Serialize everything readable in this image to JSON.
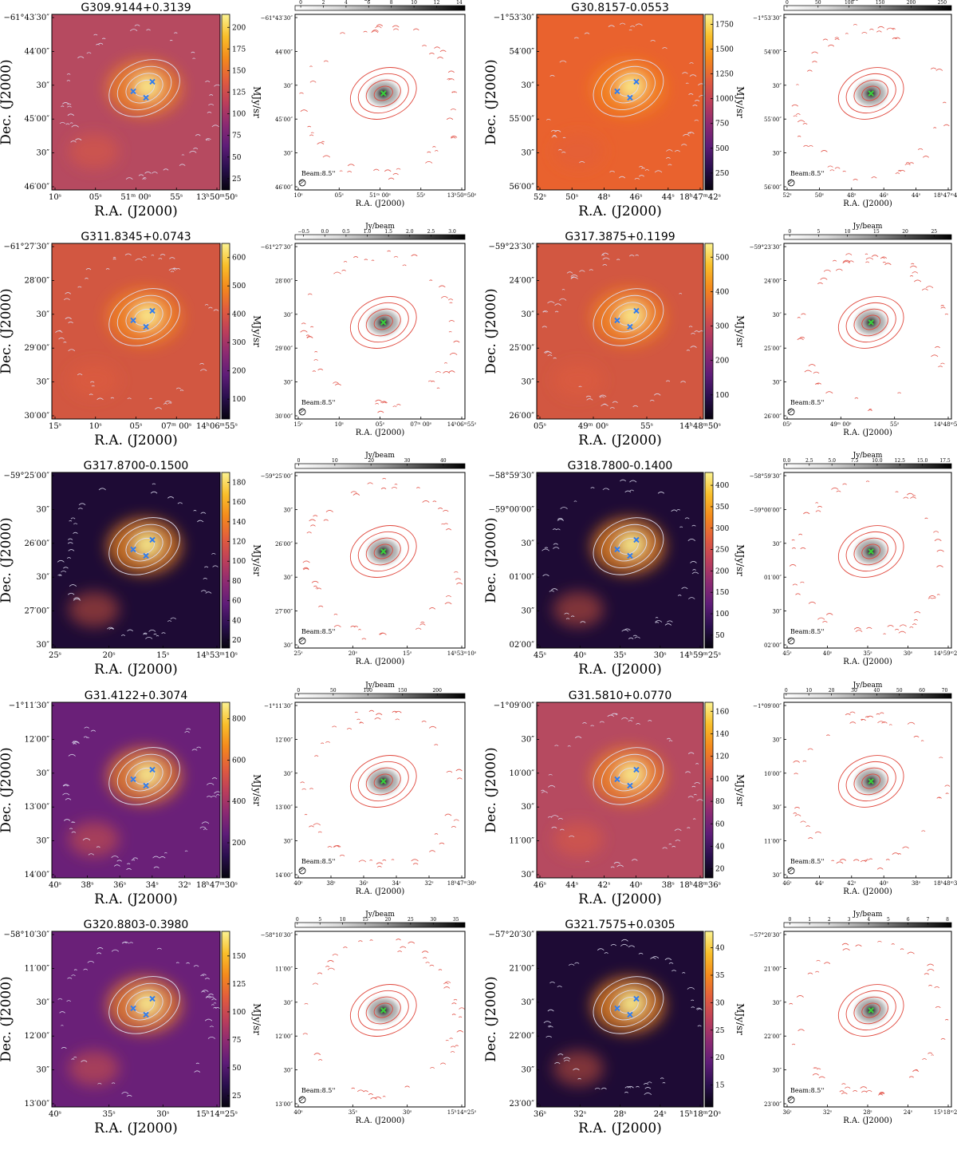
{
  "figure": {
    "ra_label": "R.A. (J2000)",
    "dec_label": "Dec. (J2000)",
    "ir_unit": "MJy/sr",
    "cbar_label": "Jy/beam",
    "beam_label": "Beam:8.5''"
  },
  "colors": {
    "ir_colormap": [
      "#07040f",
      "#2a0f4e",
      "#5e1c78",
      "#8d2a72",
      "#bd3f5a",
      "#e25d3d",
      "#f48a1c",
      "#f9bf2a",
      "#fbf291"
    ],
    "gray_colormap": [
      "#ffffff",
      "#d9d9d9",
      "#9a9a9a",
      "#4a4a4a",
      "#000000"
    ],
    "contour_ir": "#dcdcf0",
    "contour_gray": "#e0473c",
    "cross_ir": "#2f7df0",
    "cross_gray": "#38d23a"
  },
  "sources": [
    {
      "name": "G309.9144+0.3139",
      "ir_style": "bright",
      "dec_ticks": [
        "−61°43′30″",
        "44′00″",
        "30″",
        "45′00″",
        "30″",
        "46′00″"
      ],
      "ra_ticks": [
        "10ˢ",
        "05ˢ",
        "51ᵐ 00ˢ",
        "55ˢ",
        "13ʰ50ᵐ50ˢ"
      ],
      "ir_cbar_ticks": [
        "200",
        "175",
        "150",
        "125",
        "100",
        "75",
        "50",
        "25"
      ],
      "ir_cbar_values": [
        200,
        175,
        150,
        125,
        100,
        75,
        50,
        25
      ],
      "ir_cbar_range": [
        12,
        215
      ],
      "gray_cbar_ticks": [
        "0",
        "2",
        "4",
        "6",
        "8",
        "10",
        "12",
        "14"
      ],
      "gray_cbar_values": [
        0,
        2,
        4,
        6,
        8,
        10,
        12,
        14
      ],
      "gray_cbar_range": [
        -0.5,
        14.5
      ],
      "gray_dec_ticks": [
        "−61°43′30″",
        "44′00″",
        "30″",
        "45′00″",
        "30″",
        "46′00″"
      ],
      "gray_ra_ticks": [
        "10ˢ",
        "05ˢ",
        "51ᵐ 00ˢ",
        "55ˢ",
        "13ʰ50ᵐ50ˢ"
      ]
    },
    {
      "name": "G30.8157-0.0553",
      "ir_style": "saturated",
      "dec_ticks": [
        "−1°53′30″",
        "54′00″",
        "30″",
        "55′00″",
        "30″",
        "56′00″"
      ],
      "ra_ticks": [
        "52ˢ",
        "50ˢ",
        "48ˢ",
        "46ˢ",
        "44ˢ",
        "18ʰ47ᵐ42ˢ"
      ],
      "ir_cbar_ticks": [
        "1750",
        "1500",
        "1250",
        "1000",
        "750",
        "500",
        "250"
      ],
      "ir_cbar_values": [
        1750,
        1500,
        1250,
        1000,
        750,
        500,
        250
      ],
      "ir_cbar_range": [
        80,
        1850
      ],
      "gray_cbar_ticks": [
        "0",
        "50",
        "100",
        "150",
        "200",
        "250"
      ],
      "gray_cbar_values": [
        0,
        50,
        100,
        150,
        200,
        250
      ],
      "gray_cbar_range": [
        -5,
        265
      ],
      "gray_dec_ticks": [
        "−1°53′30″",
        "54′00″",
        "30″",
        "55′00″",
        "30″",
        "56′00″"
      ],
      "gray_ra_ticks": [
        "52ˢ",
        "50ˢ",
        "48ˢ",
        "46ˢ",
        "44ˢ",
        "18ʰ47ᵐ42ˢ"
      ]
    },
    {
      "name": "G311.8345+0.0743",
      "ir_style": "warm",
      "dec_ticks": [
        "−61°27′30″",
        "28′00″",
        "30″",
        "29′00″",
        "30″",
        "30′00″"
      ],
      "ra_ticks": [
        "15ˢ",
        "10ˢ",
        "05ˢ",
        "07ᵐ 00ˢ",
        "14ʰ06ᵐ55ˢ"
      ],
      "ir_cbar_ticks": [
        "600",
        "500",
        "400",
        "300",
        "200",
        "100"
      ],
      "ir_cbar_values": [
        600,
        500,
        400,
        300,
        200,
        100
      ],
      "ir_cbar_range": [
        30,
        650
      ],
      "gray_cbar_ticks": [
        "−0.5",
        "0.0",
        "0.5",
        "1.0",
        "1.5",
        "2.0",
        "2.5",
        "3.0"
      ],
      "gray_cbar_values": [
        -0.5,
        0.0,
        0.5,
        1.0,
        1.5,
        2.0,
        2.5,
        3.0
      ],
      "gray_cbar_range": [
        -0.7,
        3.3
      ],
      "gray_dec_ticks": [
        "−61°27′30″",
        "28′00″",
        "30″",
        "29′00″",
        "30″",
        "30′00″"
      ],
      "gray_ra_ticks": [
        "15ˢ",
        "10ˢ",
        "05ˢ",
        "07ᵐ 00ˢ",
        "14ʰ06ᵐ55ˢ"
      ]
    },
    {
      "name": "G317.3875+0.1199",
      "ir_style": "warm",
      "dec_ticks": [
        "−59°23′30″",
        "24′00″",
        "30″",
        "25′00″",
        "30″",
        "26′00″"
      ],
      "ra_ticks": [
        "05ˢ",
        "49ᵐ 00ˢ",
        "55ˢ",
        "14ʰ48ᵐ50ˢ"
      ],
      "ir_cbar_ticks": [
        "500",
        "400",
        "300",
        "200",
        "100"
      ],
      "ir_cbar_values": [
        500,
        400,
        300,
        200,
        100
      ],
      "ir_cbar_range": [
        30,
        540
      ],
      "gray_cbar_ticks": [
        "0",
        "5",
        "10",
        "15",
        "20",
        "25"
      ],
      "gray_cbar_values": [
        0,
        5,
        10,
        15,
        20,
        25
      ],
      "gray_cbar_range": [
        -1,
        28
      ],
      "gray_dec_ticks": [
        "−59°23′30″",
        "24′00″",
        "30″",
        "25′00″",
        "30″",
        "26′00″"
      ],
      "gray_ra_ticks": [
        "05ˢ",
        "49ᵐ 00ˢ",
        "55ˢ",
        "14ʰ48ᵐ50ˢ"
      ]
    },
    {
      "name": "G317.8700-0.1500",
      "ir_style": "dark",
      "dec_ticks": [
        "−59°25′00″",
        "30″",
        "26′00″",
        "30″",
        "27′00″",
        "30″"
      ],
      "ra_ticks": [
        "25ˢ",
        "20ˢ",
        "15ˢ",
        "14ʰ53ᵐ10ˢ"
      ],
      "ir_cbar_ticks": [
        "180",
        "160",
        "140",
        "120",
        "100",
        "80",
        "60",
        "40",
        "20"
      ],
      "ir_cbar_values": [
        180,
        160,
        140,
        120,
        100,
        80,
        60,
        40,
        20
      ],
      "ir_cbar_range": [
        12,
        190
      ],
      "gray_cbar_ticks": [
        "0",
        "10",
        "20",
        "30",
        "40"
      ],
      "gray_cbar_values": [
        0,
        10,
        20,
        30,
        40
      ],
      "gray_cbar_range": [
        -1,
        46
      ],
      "gray_dec_ticks": [
        "−59°25′00″",
        "30″",
        "26′00″",
        "30″",
        "27′00″",
        "30″"
      ],
      "gray_ra_ticks": [
        "25ˢ",
        "20ˢ",
        "15ˢ",
        "14ʰ53ᵐ10ˢ"
      ]
    },
    {
      "name": "G318.7800-0.1400",
      "ir_style": "dark",
      "dec_ticks": [
        "−58°59′30″",
        "−59°00′00″",
        "30″",
        "01′00″",
        "30″",
        "02′00″"
      ],
      "ra_ticks": [
        "45ˢ",
        "40ˢ",
        "35ˢ",
        "30ˢ",
        "14ʰ59ᵐ25ˢ"
      ],
      "ir_cbar_ticks": [
        "400",
        "350",
        "300",
        "250",
        "200",
        "150",
        "100",
        "50"
      ],
      "ir_cbar_values": [
        400,
        350,
        300,
        250,
        200,
        150,
        100,
        50
      ],
      "ir_cbar_range": [
        20,
        430
      ],
      "gray_cbar_ticks": [
        "0.0",
        "2.5",
        "5.0",
        "7.5",
        "10.0",
        "12.5",
        "15.0",
        "17.5"
      ],
      "gray_cbar_values": [
        0.0,
        2.5,
        5.0,
        7.5,
        10.0,
        12.5,
        15.0,
        17.5
      ],
      "gray_cbar_range": [
        -0.3,
        18.2
      ],
      "gray_dec_ticks": [
        "−58°59′30″",
        "−59°00′00″",
        "30″",
        "01′00″",
        "30″",
        "02′00″"
      ],
      "gray_ra_ticks": [
        "45ˢ",
        "40ˢ",
        "35ˢ",
        "30ˢ",
        "14ʰ59ᵐ25ˢ"
      ]
    },
    {
      "name": "G31.4122+0.3074",
      "ir_style": "mid",
      "dec_ticks": [
        "−1°11′30″",
        "12′00″",
        "30″",
        "13′00″",
        "30″",
        "14′00″"
      ],
      "ra_ticks": [
        "40ˢ",
        "38ˢ",
        "36ˢ",
        "34ˢ",
        "32ˢ",
        "18ʰ47ᵐ30ˢ"
      ],
      "ir_cbar_ticks": [
        "800",
        "600",
        "400",
        "200"
      ],
      "ir_cbar_values": [
        800,
        600,
        400,
        200
      ],
      "ir_cbar_range": [
        30,
        880
      ],
      "gray_cbar_ticks": [
        "0",
        "50",
        "100",
        "150",
        "200"
      ],
      "gray_cbar_values": [
        0,
        50,
        100,
        150,
        200
      ],
      "gray_cbar_range": [
        -5,
        240
      ],
      "gray_dec_ticks": [
        "−1°11′30″",
        "12′00″",
        "30″",
        "13′00″",
        "30″",
        "14′00″"
      ],
      "gray_ra_ticks": [
        "40ˢ",
        "38ˢ",
        "36ˢ",
        "34ˢ",
        "32ˢ",
        "18ʰ47ᵐ30ˢ"
      ]
    },
    {
      "name": "G31.5810+0.0770",
      "ir_style": "bright",
      "dec_ticks": [
        "−1°09′00″",
        "30″",
        "10′00″",
        "30″",
        "11′00″",
        "30″"
      ],
      "ra_ticks": [
        "46ˢ",
        "44ˢ",
        "42ˢ",
        "40ˢ",
        "38ˢ",
        "18ʰ48ᵐ36ˢ"
      ],
      "ir_cbar_ticks": [
        "160",
        "140",
        "120",
        "100",
        "80",
        "60",
        "40",
        "20"
      ],
      "ir_cbar_values": [
        160,
        140,
        120,
        100,
        80,
        60,
        40,
        20
      ],
      "ir_cbar_range": [
        12,
        168
      ],
      "gray_cbar_ticks": [
        "0",
        "10",
        "20",
        "30",
        "40",
        "50",
        "60",
        "70"
      ],
      "gray_cbar_values": [
        0,
        10,
        20,
        30,
        40,
        50,
        60,
        70
      ],
      "gray_cbar_range": [
        -1,
        73
      ],
      "gray_dec_ticks": [
        "−1°09′00″",
        "30″",
        "10′00″",
        "30″",
        "11′00″",
        "30″"
      ],
      "gray_ra_ticks": [
        "46ˢ",
        "44ˢ",
        "42ˢ",
        "40ˢ",
        "38ˢ",
        "18ʰ48ᵐ36ˢ"
      ]
    },
    {
      "name": "G320.8803-0.3980",
      "ir_style": "mid",
      "dec_ticks": [
        "−58°10′30″",
        "11′00″",
        "30″",
        "12′00″",
        "30″",
        "13′00″"
      ],
      "ra_ticks": [
        "40ˢ",
        "35ˢ",
        "30ˢ",
        "15ʰ14ᵐ25ˢ"
      ],
      "ir_cbar_ticks": [
        "150",
        "125",
        "100",
        "75",
        "50",
        "25"
      ],
      "ir_cbar_values": [
        150,
        125,
        100,
        75,
        50,
        25
      ],
      "ir_cbar_range": [
        15,
        172
      ],
      "gray_cbar_ticks": [
        "0",
        "5",
        "10",
        "15",
        "20",
        "25",
        "30",
        "35"
      ],
      "gray_cbar_values": [
        0,
        5,
        10,
        15,
        20,
        25,
        30,
        35
      ],
      "gray_cbar_range": [
        -0.5,
        37
      ],
      "gray_dec_ticks": [
        "−58°10′30″",
        "11′00″",
        "30″",
        "12′00″",
        "30″",
        "13′00″"
      ],
      "gray_ra_ticks": [
        "40ˢ",
        "35ˢ",
        "30ˢ",
        "15ʰ14ᵐ25ˢ"
      ]
    },
    {
      "name": "G321.7575+0.0305",
      "ir_style": "dark",
      "dec_ticks": [
        "−57°20′30″",
        "21′00″",
        "30″",
        "22′00″",
        "30″",
        "23′00″"
      ],
      "ra_ticks": [
        "36ˢ",
        "32ˢ",
        "28ˢ",
        "24ˢ",
        "15ʰ18ᵐ20ˢ"
      ],
      "ir_cbar_ticks": [
        "40",
        "35",
        "30",
        "25",
        "20",
        "15"
      ],
      "ir_cbar_values": [
        40,
        35,
        30,
        25,
        20,
        15
      ],
      "ir_cbar_range": [
        11,
        43
      ],
      "gray_cbar_ticks": [
        "0",
        "1",
        "2",
        "3",
        "4",
        "5",
        "6",
        "7",
        "8"
      ],
      "gray_cbar_values": [
        0,
        1,
        2,
        3,
        4,
        5,
        6,
        7,
        8
      ],
      "gray_cbar_range": [
        -0.3,
        8.2
      ],
      "gray_dec_ticks": [
        "−57°20′30″",
        "21′00″",
        "30″",
        "22′00″",
        "30″",
        "23′00″"
      ],
      "gray_ra_ticks": [
        "36ˢ",
        "32ˢ",
        "28ˢ",
        "24ˢ",
        "15ʰ18ᵐ20ˢ"
      ]
    }
  ]
}
